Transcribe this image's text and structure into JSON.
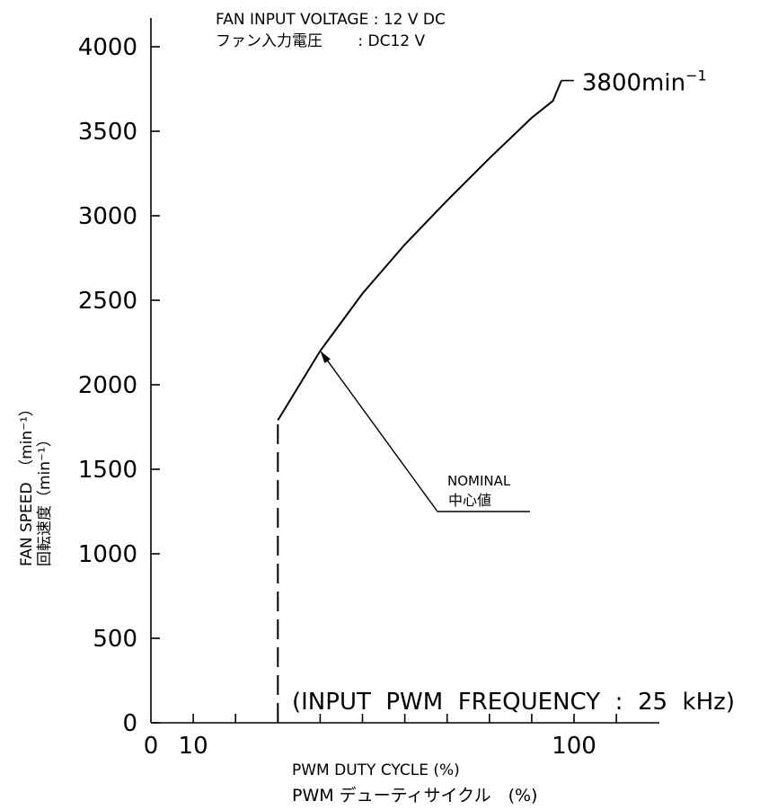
{
  "chart_data": {
    "type": "line",
    "header_lines": [
      "FAN INPUT VOLTAGE : 12 V DC",
      "ファン入力電圧　 　: DC12  V"
    ],
    "ylabel_lines": [
      "FAN SPEED　（min⁻¹）",
      "回転速度（min⁻¹）"
    ],
    "xlabel_lines": [
      "PWM DUTY CYCLE (%)",
      "PWM デューティサイクル　(%)"
    ],
    "xlim": [
      0,
      120
    ],
    "ylim": [
      0,
      4000
    ],
    "x_tick_labels": [
      {
        "value": 0,
        "label": "0"
      },
      {
        "value": 10,
        "label": "10"
      },
      {
        "value": 100,
        "label": "100"
      }
    ],
    "x_minor_ticks": [
      10,
      20,
      30,
      40,
      50,
      60,
      70,
      80,
      90,
      100,
      110
    ],
    "y_ticks": [
      {
        "value": 0,
        "label": "0"
      },
      {
        "value": 500,
        "label": "500"
      },
      {
        "value": 1000,
        "label": "1000"
      },
      {
        "value": 1500,
        "label": "1500"
      },
      {
        "value": 2000,
        "label": "2000"
      },
      {
        "value": 2500,
        "label": "2500"
      },
      {
        "value": 3000,
        "label": "3000"
      },
      {
        "value": 3500,
        "label": "3500"
      },
      {
        "value": 4000,
        "label": "4000"
      }
    ],
    "series": [
      {
        "style": "solid",
        "x": [
          30,
          40,
          50,
          60,
          70,
          80,
          90,
          95,
          97
        ],
        "y": [
          1790,
          2200,
          2540,
          2830,
          3090,
          3340,
          3580,
          3680,
          3800
        ]
      },
      {
        "style": "dashed",
        "x": [
          30,
          30
        ],
        "y": [
          0,
          1790
        ]
      }
    ],
    "annotations": {
      "end_value": {
        "x": 97,
        "y": 3800,
        "text": "3800min",
        "superscript": "−1"
      },
      "nominal": {
        "lines": [
          "NOMINAL",
          "中心値"
        ],
        "target": {
          "x": 40,
          "y": 2200
        }
      },
      "pwm_frequency": "(INPUT  PWM  FREQUENCY  :  25  kHz)"
    },
    "grid": false
  }
}
